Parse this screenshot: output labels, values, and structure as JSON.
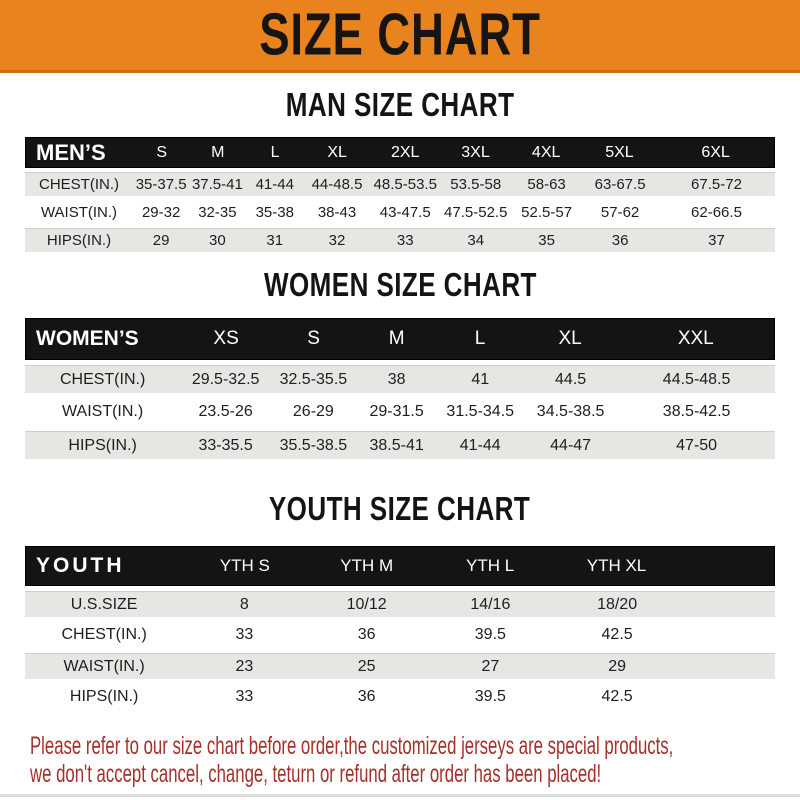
{
  "banner": {
    "title": "SIZE CHART"
  },
  "colors": {
    "banner_orange": "#E8831D",
    "header_bar_black": "#141414",
    "stripe_gray": "#E7E6E3",
    "note_red": "#A5302B"
  },
  "sections": {
    "men": {
      "heading": "MAN SIZE CHART",
      "header": {
        "label": "MEN’S",
        "sizes": [
          "S",
          "M",
          "L",
          "XL",
          "2XL",
          "3XL",
          "4XL",
          "5XL",
          "6XL"
        ]
      },
      "rows": [
        {
          "label": "CHEST(IN.)",
          "values": [
            "35-37.5",
            "37.5-41",
            "41-44",
            "44-48.5",
            "48.5-53.5",
            "53.5-58",
            "58-63",
            "63-67.5",
            "67.5-72"
          ]
        },
        {
          "label": "WAIST(IN.)",
          "values": [
            "29-32",
            "32-35",
            "35-38",
            "38-43",
            "43-47.5",
            "47.5-52.5",
            "52.5-57",
            "57-62",
            "62-66.5"
          ]
        },
        {
          "label": "HIPS(IN.)",
          "values": [
            "29",
            "30",
            "31",
            "32",
            "33",
            "34",
            "35",
            "36",
            "37"
          ]
        }
      ]
    },
    "women": {
      "heading": "WOMEN SIZE CHART",
      "header": {
        "label": "WOMEN’S",
        "sizes": [
          "XS",
          "S",
          "M",
          "L",
          "XL",
          "XXL"
        ]
      },
      "rows": [
        {
          "label": "CHEST(IN.)",
          "values": [
            "29.5-32.5",
            "32.5-35.5",
            "38",
            "41",
            "44.5",
            "44.5-48.5"
          ]
        },
        {
          "label": "WAIST(IN.)",
          "values": [
            "23.5-26",
            "26-29",
            "29-31.5",
            "31.5-34.5",
            "34.5-38.5",
            "38.5-42.5"
          ]
        },
        {
          "label": "HIPS(IN.)",
          "values": [
            "33-35.5",
            "35.5-38.5",
            "38.5-41",
            "41-44",
            "44-47",
            "47-50"
          ]
        }
      ]
    },
    "youth": {
      "heading": "YOUTH SIZE CHART",
      "header": {
        "label": "YOUTH",
        "sizes": [
          "YTH S",
          "YTH M",
          "YTH L",
          "YTH XL"
        ]
      },
      "rows": [
        {
          "label": "U.S.SIZE",
          "values": [
            "8",
            "10/12",
            "14/16",
            "18/20"
          ]
        },
        {
          "label": "CHEST(IN.)",
          "values": [
            "33",
            "36",
            "39.5",
            "42.5"
          ]
        },
        {
          "label": "WAIST(IN.)",
          "values": [
            "23",
            "25",
            "27",
            "29"
          ]
        },
        {
          "label": "HIPS(IN.)",
          "values": [
            "33",
            "36",
            "39.5",
            "42.5"
          ]
        }
      ]
    }
  },
  "footer": {
    "line1": "Please refer to our size chart before order,the customized jerseys are special products,",
    "line2": "we don't accept cancel, change, teturn or refund after order has been placed!"
  }
}
